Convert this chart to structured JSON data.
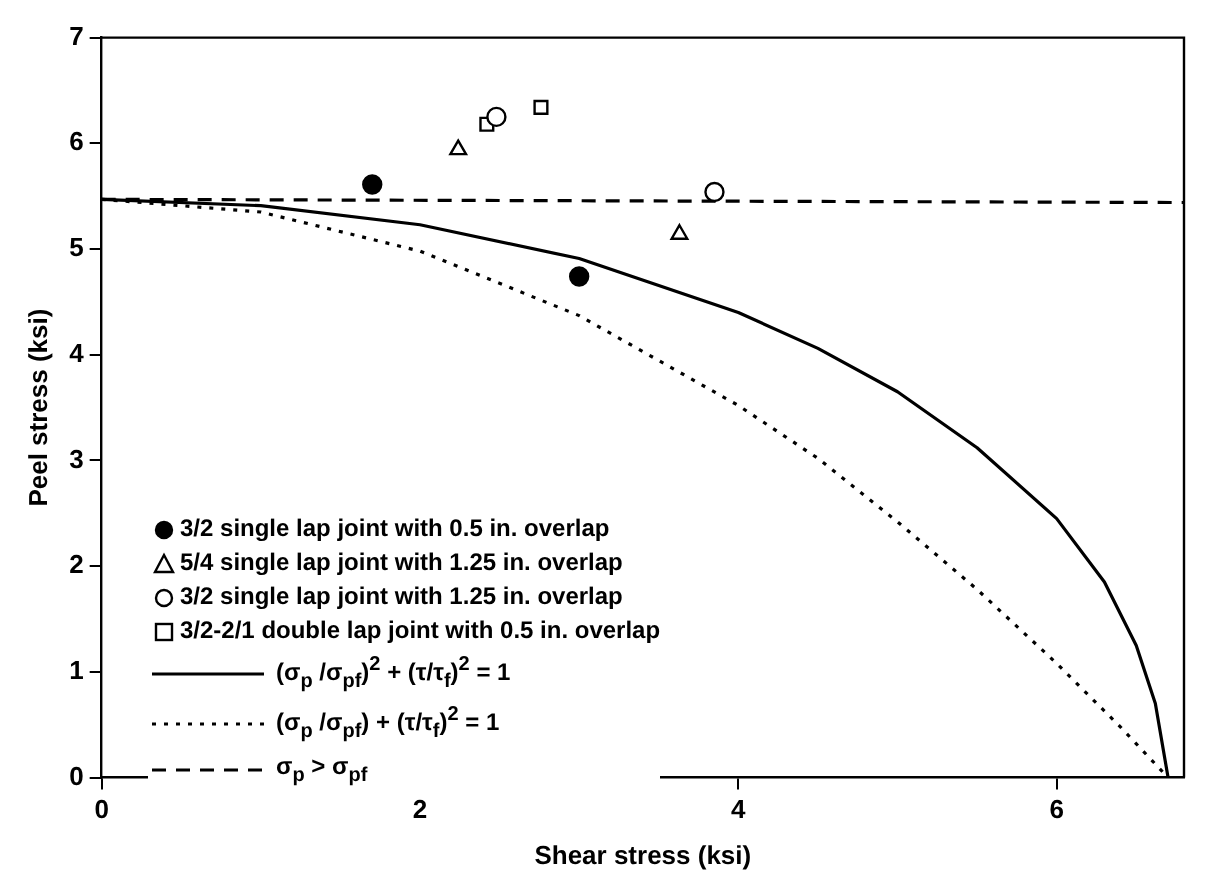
{
  "chart_data": {
    "type": "scatter",
    "xlabel": "Shear stress (ksi)",
    "ylabel": "Peel stress (ksi)",
    "xlim": [
      0,
      6.8
    ],
    "ylim": [
      0,
      7
    ],
    "xticks": [
      0,
      2,
      4,
      6
    ],
    "yticks": [
      0,
      1,
      2,
      3,
      4,
      5,
      6,
      7
    ],
    "grid": false,
    "legend": "bottom left",
    "series": [
      {
        "name": "3/2 single lap joint with 0.5 in. overlap",
        "color": "#000000",
        "marker": "circle",
        "x": [
          1.7,
          3.0
        ],
        "values": [
          5.61,
          4.74
        ]
      },
      {
        "name": "5/4 single lap joint with 1.25 in. overlap",
        "color": "#000000",
        "marker": "triangle",
        "x": [
          2.24,
          3.63
        ],
        "values": [
          5.94,
          5.14
        ]
      },
      {
        "name": "3/2 single lap joint with 1.25 in. overlap",
        "color": "#000000",
        "marker": "circle",
        "x": [
          2.48,
          3.85
        ],
        "values": [
          6.25,
          5.54
        ]
      },
      {
        "name": "3/2-2/1 double lap joint with 0.5 in. overlap",
        "color": "#000000",
        "marker": "square",
        "x": [
          2.42,
          2.76
        ],
        "values": [
          6.18,
          6.34
        ]
      },
      {
        "name": "(σ$_{p}$ /σ$_{pf}$)$^{2}$ + (τ/τ$_{f}$)$^{2}$ = 1",
        "type": "line",
        "color": "#000000",
        "marker": "none",
        "line_style": "solid",
        "x": [
          0,
          1,
          2,
          3,
          4,
          4.5,
          5,
          5.5,
          6,
          6.3,
          6.5,
          6.62,
          6.7
        ],
        "values": [
          5.47,
          5.41,
          5.23,
          4.91,
          4.4,
          4.06,
          3.65,
          3.12,
          2.45,
          1.85,
          1.25,
          0.7,
          0
        ]
      },
      {
        "name": "(σ$_{p}$ /σ$_{pf}$) + (τ/τ$_{f}$)$^{2}$ = 1",
        "type": "line",
        "color": "#000000",
        "marker": "none",
        "line_style": "dotted",
        "x": [
          0,
          1,
          2,
          3,
          4,
          4.5,
          5,
          5.5,
          6,
          6.4,
          6.7
        ],
        "values": [
          5.47,
          5.35,
          4.98,
          4.37,
          3.52,
          3.02,
          2.42,
          1.78,
          1.08,
          0.48,
          0
        ]
      },
      {
        "name": "σ$_{p}$ > σ$_{pf}$",
        "type": "line",
        "color": "#000000",
        "marker": "none",
        "line_style": "dashed",
        "x": [
          0,
          6.8
        ],
        "values": [
          5.47,
          5.44
        ]
      }
    ]
  }
}
